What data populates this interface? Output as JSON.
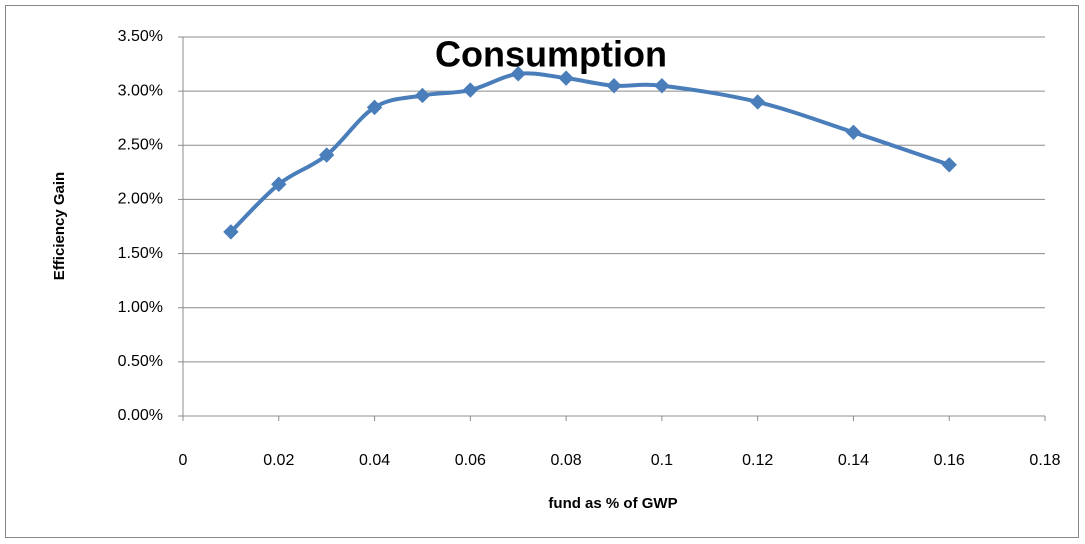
{
  "chart_data": {
    "type": "line",
    "title": "Consumption",
    "x_label": "fund as % of GWP",
    "y_label": "Efficiency Gain",
    "x": [
      0.01,
      0.02,
      0.03,
      0.04,
      0.05,
      0.06,
      0.07,
      0.08,
      0.09,
      0.1,
      0.12,
      0.14,
      0.16
    ],
    "series": [
      {
        "color": "#4a7ebb",
        "values": [
          1.7,
          2.14,
          2.41,
          2.85,
          2.96,
          3.01,
          3.16,
          3.12,
          3.05,
          3.05,
          2.9,
          2.62,
          2.32
        ]
      }
    ],
    "xlim": [
      0,
      0.18
    ],
    "xticks": [
      0,
      0.02,
      0.04,
      0.06,
      0.08,
      0.1,
      0.12,
      0.14,
      0.16,
      0.18
    ],
    "ylim": [
      0,
      3.5
    ],
    "yticks": [
      {
        "value": 0,
        "label": "0.00%"
      },
      {
        "value": 0.5,
        "label": "0.50%"
      },
      {
        "value": 1,
        "label": "1.00%"
      },
      {
        "value": 1.5,
        "label": "1.50%"
      },
      {
        "value": 2,
        "label": "2.00%"
      },
      {
        "value": 2.5,
        "label": "2.50%"
      },
      {
        "value": 3,
        "label": "3.00%"
      },
      {
        "value": 3.5,
        "label": "3.50%"
      }
    ],
    "grid": true,
    "smooth": true,
    "marker": "diamond"
  }
}
